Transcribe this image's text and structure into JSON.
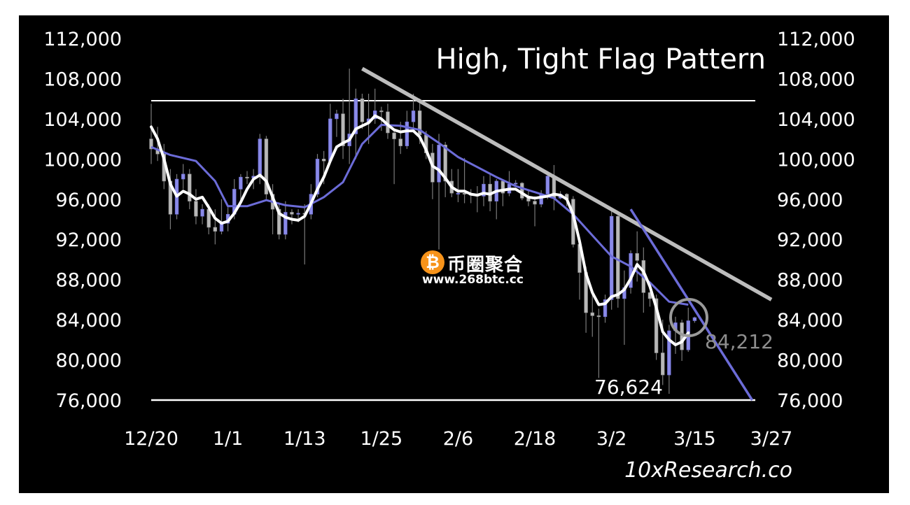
{
  "chart_data": {
    "type": "candlestick",
    "title": "High, Tight Flag Pattern",
    "source": "10xResearch.co",
    "x_ticks": [
      "12/20",
      "1/1",
      "1/13",
      "1/25",
      "2/6",
      "2/18",
      "3/2",
      "3/15",
      "3/27"
    ],
    "y_ticks": [
      "112,000",
      "108,000",
      "104,000",
      "100,000",
      "96,000",
      "92,000",
      "88,000",
      "84,000",
      "80,000",
      "76,000"
    ],
    "ylim": [
      76000,
      112000
    ],
    "x_start": "12/20",
    "x_end": "3/27",
    "annotations": {
      "low_label": "76,624",
      "current_label": "84,212"
    },
    "horizontal_levels": [
      105800,
      76000
    ],
    "downtrend_line": {
      "from": [
        "1/22",
        109000
      ],
      "to": [
        "3/27",
        86000
      ]
    },
    "steep_line": {
      "from": [
        "3/5",
        95000
      ],
      "to": [
        "3/24",
        76000
      ]
    },
    "candles": [
      [
        "12/20",
        102000,
        105500,
        99500,
        101000
      ],
      [
        "12/21",
        101000,
        103200,
        99800,
        100500
      ],
      [
        "12/22",
        100500,
        101500,
        97000,
        97800
      ],
      [
        "12/23",
        97800,
        99000,
        93000,
        94500
      ],
      [
        "12/24",
        94500,
        98500,
        94000,
        98000
      ],
      [
        "12/25",
        98000,
        99500,
        97000,
        98500
      ],
      [
        "12/26",
        98500,
        99000,
        95000,
        95800
      ],
      [
        "12/27",
        95800,
        97000,
        93500,
        94300
      ],
      [
        "12/28",
        94300,
        95500,
        93500,
        95000
      ],
      [
        "12/29",
        95000,
        95500,
        92500,
        93200
      ],
      [
        "12/30",
        93200,
        95000,
        91500,
        92800
      ],
      [
        "12/31",
        92800,
        96000,
        92500,
        93600
      ],
      [
        "1/1",
        93600,
        95200,
        92800,
        94500
      ],
      [
        "1/2",
        94500,
        98000,
        94000,
        97000
      ],
      [
        "1/3",
        97000,
        98500,
        95500,
        98200
      ],
      [
        "1/4",
        98200,
        98800,
        97500,
        98100
      ],
      [
        "1/5",
        98100,
        99000,
        97000,
        98300
      ],
      [
        "1/6",
        98300,
        102500,
        97500,
        102000
      ],
      [
        "1/7",
        102000,
        102300,
        96000,
        96500
      ],
      [
        "1/8",
        96500,
        97500,
        92500,
        95000
      ],
      [
        "1/9",
        95000,
        95500,
        92000,
        92500
      ],
      [
        "1/10",
        92500,
        95800,
        92000,
        94700
      ],
      [
        "1/11",
        94700,
        95000,
        93500,
        94500
      ],
      [
        "1/12",
        94500,
        95000,
        93700,
        94600
      ],
      [
        "1/13",
        94600,
        95500,
        89500,
        94500
      ],
      [
        "1/14",
        94500,
        97500,
        94000,
        96500
      ],
      [
        "1/15",
        96500,
        100500,
        96200,
        100000
      ],
      [
        "1/16",
        100000,
        100800,
        97500,
        99800
      ],
      [
        "1/17",
        99800,
        105500,
        99500,
        104000
      ],
      [
        "1/18",
        104000,
        104900,
        102200,
        104500
      ],
      [
        "1/19",
        104500,
        106000,
        100000,
        101300
      ],
      [
        "1/20",
        101300,
        109000,
        99500,
        102500
      ],
      [
        "1/21",
        102500,
        107000,
        100000,
        106000
      ],
      [
        "1/22",
        106000,
        106500,
        103000,
        103700
      ],
      [
        "1/23",
        103700,
        106500,
        101500,
        104000
      ],
      [
        "1/24",
        104000,
        107000,
        103500,
        104800
      ],
      [
        "1/25",
        104800,
        105200,
        102800,
        104700
      ],
      [
        "1/26",
        104700,
        105500,
        102000,
        102600
      ],
      [
        "1/27",
        102600,
        103000,
        97500,
        102000
      ],
      [
        "1/28",
        102000,
        103700,
        100500,
        101300
      ],
      [
        "1/29",
        101300,
        104800,
        101000,
        103700
      ],
      [
        "1/30",
        103700,
        106500,
        103000,
        104800
      ],
      [
        "1/31",
        104800,
        106000,
        101500,
        102400
      ],
      [
        "2/1",
        102400,
        102800,
        100000,
        100600
      ],
      [
        "2/2",
        100600,
        101500,
        96000,
        97700
      ],
      [
        "2/3",
        97700,
        102500,
        91000,
        101400
      ],
      [
        "2/4",
        101400,
        101700,
        96200,
        97800
      ],
      [
        "2/5",
        97800,
        99000,
        96200,
        96600
      ],
      [
        "2/6",
        96600,
        99000,
        95700,
        96600
      ],
      [
        "2/7",
        96600,
        100100,
        95600,
        96500
      ],
      [
        "2/8",
        96500,
        97000,
        95600,
        96400
      ],
      [
        "2/9",
        96400,
        97300,
        94700,
        96300
      ],
      [
        "2/10",
        96300,
        98300,
        95300,
        97500
      ],
      [
        "2/11",
        97500,
        98500,
        94800,
        95800
      ],
      [
        "2/12",
        95800,
        98000,
        94000,
        97800
      ],
      [
        "2/13",
        97800,
        98000,
        95300,
        96600
      ],
      [
        "2/14",
        96600,
        98800,
        96300,
        97500
      ],
      [
        "2/15",
        97500,
        97900,
        97200,
        97600
      ],
      [
        "2/16",
        97600,
        97700,
        95900,
        96100
      ],
      [
        "2/17",
        96100,
        97000,
        95300,
        95800
      ],
      [
        "2/18",
        95800,
        96300,
        93300,
        95500
      ],
      [
        "2/19",
        95500,
        96900,
        95200,
        96500
      ],
      [
        "2/20",
        96500,
        98700,
        96000,
        98300
      ],
      [
        "2/21",
        98300,
        99400,
        94900,
        96100
      ],
      [
        "2/22",
        96100,
        96800,
        96000,
        96500
      ],
      [
        "2/23",
        96500,
        96600,
        95300,
        96000
      ],
      [
        "2/24",
        96000,
        96300,
        91200,
        91500
      ],
      [
        "2/25",
        91500,
        92000,
        86000,
        88700
      ],
      [
        "2/26",
        88700,
        89300,
        82700,
        84700
      ],
      [
        "2/27",
        84700,
        87000,
        82300,
        84400
      ],
      [
        "2/28",
        84400,
        85100,
        78200,
        84300
      ],
      [
        "3/1",
        84300,
        86500,
        83700,
        86000
      ],
      [
        "3/2",
        86000,
        95000,
        85000,
        94300
      ],
      [
        "3/3",
        94300,
        94400,
        85200,
        86100
      ],
      [
        "3/4",
        86100,
        88900,
        81500,
        87200
      ],
      [
        "3/5",
        87200,
        90900,
        86600,
        90600
      ],
      [
        "3/6",
        90600,
        92800,
        87800,
        89900
      ],
      [
        "3/7",
        89900,
        91200,
        84700,
        86700
      ],
      [
        "3/8",
        86700,
        86800,
        85300,
        86100
      ],
      [
        "3/9",
        86100,
        86500,
        80000,
        80700
      ],
      [
        "3/10",
        80700,
        84000,
        77500,
        78500
      ],
      [
        "3/11",
        78500,
        83500,
        76624,
        82900
      ],
      [
        "3/12",
        82900,
        84300,
        80600,
        83700
      ],
      [
        "3/13",
        83700,
        84000,
        79900,
        81000
      ],
      [
        "3/14",
        81000,
        85200,
        80800,
        83900
      ],
      [
        "3/15",
        83900,
        84300,
        83700,
        84212
      ]
    ],
    "series": [
      {
        "name": "",
        "color": "#ffffff",
        "points": [
          [
            "12/20",
            103200
          ],
          [
            "12/21",
            102000
          ],
          [
            "12/22",
            100000
          ],
          [
            "12/23",
            97500
          ],
          [
            "12/24",
            96300
          ],
          [
            "12/25",
            96800
          ],
          [
            "12/26",
            96500
          ],
          [
            "12/27",
            96000
          ],
          [
            "12/28",
            96200
          ],
          [
            "12/29",
            95200
          ],
          [
            "12/30",
            94100
          ],
          [
            "12/31",
            93600
          ],
          [
            "1/1",
            93800
          ],
          [
            "1/2",
            94600
          ],
          [
            "1/3",
            95700
          ],
          [
            "1/4",
            97000
          ],
          [
            "1/5",
            98000
          ],
          [
            "1/6",
            98400
          ],
          [
            "1/7",
            97800
          ],
          [
            "1/8",
            96200
          ],
          [
            "1/9",
            94600
          ],
          [
            "1/10",
            94200
          ],
          [
            "1/11",
            94000
          ],
          [
            "1/12",
            93900
          ],
          [
            "1/13",
            94300
          ],
          [
            "1/14",
            95600
          ],
          [
            "1/15",
            97000
          ],
          [
            "1/16",
            98200
          ],
          [
            "1/17",
            99800
          ],
          [
            "1/18",
            101200
          ],
          [
            "1/19",
            101600
          ],
          [
            "1/20",
            101900
          ],
          [
            "1/21",
            103000
          ],
          [
            "1/22",
            103300
          ],
          [
            "1/23",
            103600
          ],
          [
            "1/24",
            104300
          ],
          [
            "1/25",
            104000
          ],
          [
            "1/26",
            103400
          ],
          [
            "1/27",
            102900
          ],
          [
            "1/28",
            102700
          ],
          [
            "1/29",
            102800
          ],
          [
            "1/30",
            102800
          ],
          [
            "1/31",
            102200
          ],
          [
            "2/1",
            100900
          ],
          [
            "2/2",
            99300
          ],
          [
            "2/3",
            98900
          ],
          [
            "2/4",
            98100
          ],
          [
            "2/5",
            97200
          ],
          [
            "2/6",
            96800
          ],
          [
            "2/7",
            96800
          ],
          [
            "2/8",
            96500
          ],
          [
            "2/9",
            96400
          ],
          [
            "2/10",
            96600
          ],
          [
            "2/11",
            96500
          ],
          [
            "2/12",
            96800
          ],
          [
            "2/13",
            96900
          ],
          [
            "2/14",
            97000
          ],
          [
            "2/15",
            97000
          ],
          [
            "2/16",
            96600
          ],
          [
            "2/17",
            96200
          ],
          [
            "2/18",
            96100
          ],
          [
            "2/19",
            96200
          ],
          [
            "2/20",
            96300
          ],
          [
            "2/21",
            96500
          ],
          [
            "2/22",
            96400
          ],
          [
            "2/23",
            96000
          ],
          [
            "2/24",
            94500
          ],
          [
            "2/25",
            91800
          ],
          [
            "2/26",
            88600
          ],
          [
            "2/27",
            86700
          ],
          [
            "2/28",
            85500
          ],
          [
            "3/1",
            85600
          ],
          [
            "3/2",
            86300
          ],
          [
            "3/3",
            86500
          ],
          [
            "3/4",
            87000
          ],
          [
            "3/5",
            88100
          ],
          [
            "3/6",
            89500
          ],
          [
            "3/7",
            88800
          ],
          [
            "3/8",
            87300
          ],
          [
            "3/9",
            85200
          ],
          [
            "3/10",
            82800
          ],
          [
            "3/11",
            82000
          ],
          [
            "3/12",
            81500
          ],
          [
            "3/13",
            81800
          ],
          [
            "3/14",
            82700
          ]
        ]
      },
      {
        "name": "",
        "color": "#6c6cd8",
        "points": [
          [
            "12/20",
            101200
          ],
          [
            "12/23",
            100400
          ],
          [
            "12/27",
            99800
          ],
          [
            "12/30",
            97800
          ],
          [
            "1/1",
            95300
          ],
          [
            "1/4",
            95300
          ],
          [
            "1/7",
            95900
          ],
          [
            "1/10",
            95400
          ],
          [
            "1/13",
            95200
          ],
          [
            "1/16",
            96200
          ],
          [
            "1/19",
            97700
          ],
          [
            "1/22",
            101500
          ],
          [
            "1/25",
            103400
          ],
          [
            "1/28",
            103300
          ],
          [
            "1/31",
            102900
          ],
          [
            "2/3",
            101600
          ],
          [
            "2/6",
            100200
          ],
          [
            "2/9",
            99200
          ],
          [
            "2/12",
            98200
          ],
          [
            "2/15",
            97300
          ],
          [
            "2/18",
            96700
          ],
          [
            "2/21",
            96100
          ],
          [
            "2/24",
            94500
          ],
          [
            "2/27",
            92400
          ],
          [
            "3/2",
            90300
          ],
          [
            "3/5",
            89300
          ],
          [
            "3/8",
            87700
          ],
          [
            "3/11",
            85800
          ],
          [
            "3/14",
            85500
          ]
        ]
      }
    ]
  }
}
